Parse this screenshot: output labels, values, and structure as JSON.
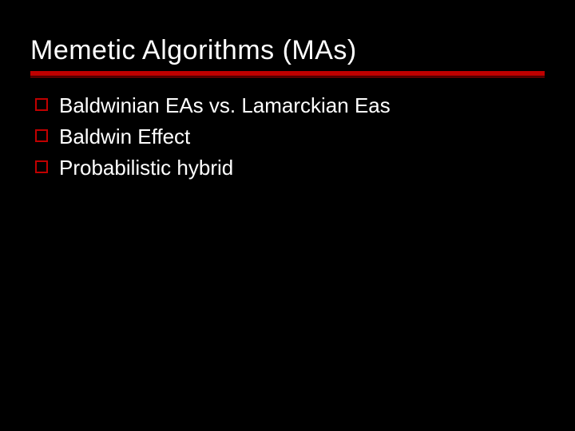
{
  "slide": {
    "background_color": "#000000",
    "title": {
      "text": "Memetic Algorithms (MAs)",
      "color": "#ffffff",
      "fontsize": 34
    },
    "underline": {
      "color": "#c00000",
      "thick_height": 6,
      "thin_height": 1
    },
    "bullets": {
      "marker_type": "hollow-square",
      "marker_border_color": "#c00000",
      "marker_size": 16,
      "text_color": "#ffffff",
      "text_fontsize": 26,
      "items": [
        {
          "text": "Baldwinian EAs vs. Lamarckian Eas"
        },
        {
          "text": "Baldwin Effect"
        },
        {
          "text": "Probabilistic hybrid"
        }
      ]
    }
  }
}
